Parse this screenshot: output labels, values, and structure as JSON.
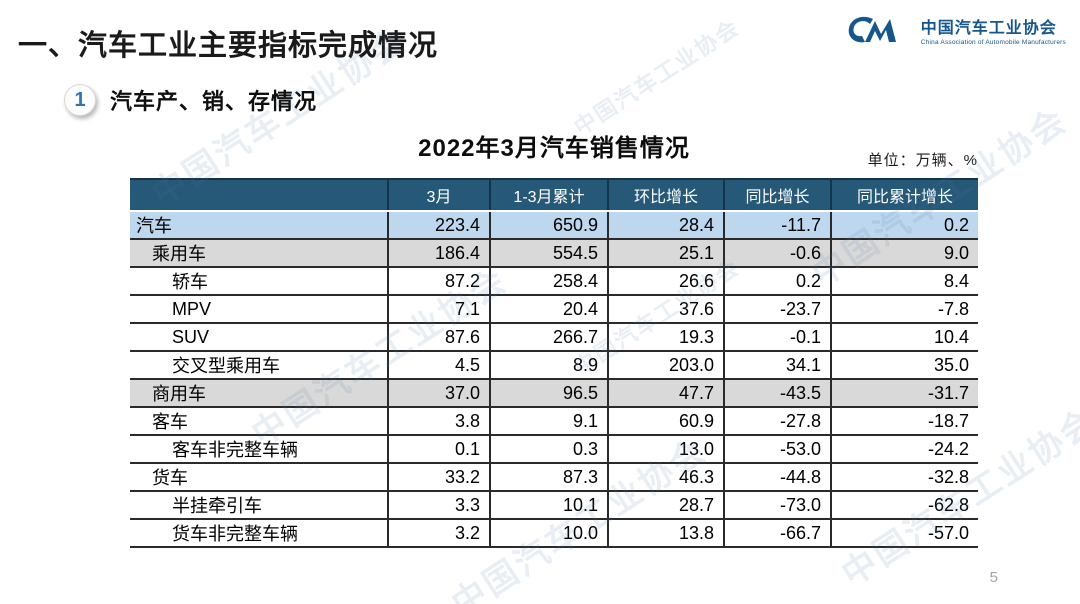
{
  "page": {
    "title": "一、汽车工业主要指标完成情况",
    "page_number": "5"
  },
  "logo": {
    "glyph": "CM-swoosh",
    "name_cn": "中国汽车工业协会",
    "name_en": "China Association of Automobile Manufacturers"
  },
  "section": {
    "badge": "1",
    "heading": "汽车产、销、存情况"
  },
  "table": {
    "title": "2022年3月汽车销售情况",
    "unit_label": "单位：万辆、%",
    "columns": [
      "",
      "3月",
      "1-3月累计",
      "环比增长",
      "同比增长",
      "同比累计增长"
    ],
    "rows": [
      {
        "label": "汽车",
        "indent": 0,
        "bg": "blue",
        "values": [
          "223.4",
          "650.9",
          "28.4",
          "-11.7",
          "0.2"
        ]
      },
      {
        "label": "乘用车",
        "indent": 1,
        "bg": "gray",
        "values": [
          "186.4",
          "554.5",
          "25.1",
          "-0.6",
          "9.0"
        ]
      },
      {
        "label": "轿车",
        "indent": 2,
        "bg": "white",
        "values": [
          "87.2",
          "258.4",
          "26.6",
          "0.2",
          "8.4"
        ]
      },
      {
        "label": "MPV",
        "indent": 2,
        "bg": "white",
        "values": [
          "7.1",
          "20.4",
          "37.6",
          "-23.7",
          "-7.8"
        ]
      },
      {
        "label": "SUV",
        "indent": 2,
        "bg": "white",
        "values": [
          "87.6",
          "266.7",
          "19.3",
          "-0.1",
          "10.4"
        ]
      },
      {
        "label": "交叉型乘用车",
        "indent": 2,
        "bg": "white",
        "values": [
          "4.5",
          "8.9",
          "203.0",
          "34.1",
          "35.0"
        ]
      },
      {
        "label": "商用车",
        "indent": 1,
        "bg": "gray",
        "values": [
          "37.0",
          "96.5",
          "47.7",
          "-43.5",
          "-31.7"
        ]
      },
      {
        "label": "客车",
        "indent": 1,
        "bg": "white",
        "values": [
          "3.8",
          "9.1",
          "60.9",
          "-27.8",
          "-18.7"
        ]
      },
      {
        "label": "客车非完整车辆",
        "indent": 2,
        "bg": "white",
        "values": [
          "0.1",
          "0.3",
          "13.0",
          "-53.0",
          "-24.2"
        ]
      },
      {
        "label": "货车",
        "indent": 1,
        "bg": "white",
        "values": [
          "33.2",
          "87.3",
          "46.3",
          "-44.8",
          "-32.8"
        ]
      },
      {
        "label": "半挂牵引车",
        "indent": 2,
        "bg": "white",
        "values": [
          "3.3",
          "10.1",
          "28.7",
          "-73.0",
          "-62.8"
        ]
      },
      {
        "label": "货车非完整车辆",
        "indent": 2,
        "bg": "white",
        "values": [
          "3.2",
          "10.0",
          "13.8",
          "-66.7",
          "-57.0"
        ]
      }
    ]
  },
  "watermark": {
    "text": "中国汽车工业协会"
  },
  "colors": {
    "table_header_bg": "#265878",
    "row_highlight_blue": "#bdd7ee",
    "row_highlight_gray": "#d9d9d9",
    "logo_blue": "#15568c",
    "badge_number_blue": "#2e75b6",
    "border_dark": "#2a2a2a"
  }
}
